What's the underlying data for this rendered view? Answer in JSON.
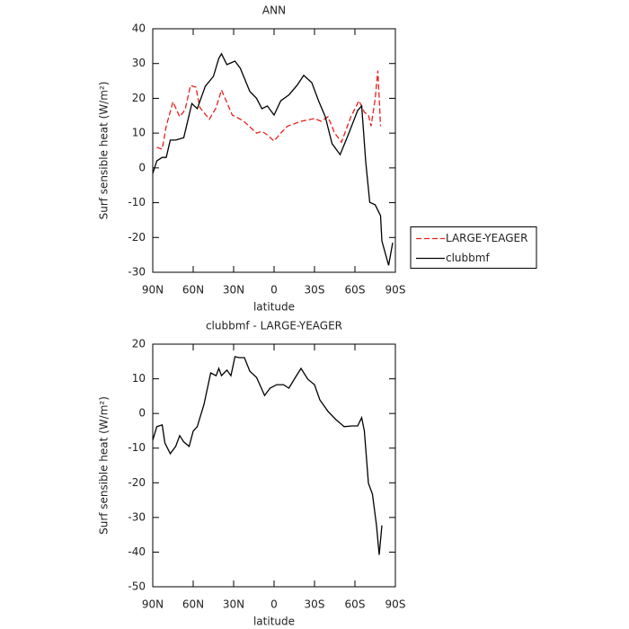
{
  "chart_data": [
    {
      "type": "line",
      "title": "ANN",
      "xlabel": "latitude",
      "ylabel": "Surf sensible heat (W/m²)",
      "xlim": [
        90,
        -90
      ],
      "ylim": [
        -30,
        40
      ],
      "xticks": [
        {
          "value": 90,
          "label": "90N"
        },
        {
          "value": 60,
          "label": "60N"
        },
        {
          "value": 30,
          "label": "30N"
        },
        0,
        {
          "value": -30,
          "label": "30S"
        },
        {
          "value": -60,
          "label": "60S"
        },
        {
          "value": -90,
          "label": "90S"
        }
      ],
      "yticks": [
        -30,
        -20,
        -10,
        0,
        10,
        20,
        30,
        40
      ],
      "legend": "right",
      "series": [
        {
          "name": "LARGE-YEAGER",
          "color": "#e8201c",
          "dash": true,
          "x": [
            87,
            83,
            80,
            75,
            70,
            66,
            62,
            58,
            55,
            48,
            43,
            39,
            31,
            23,
            13,
            9,
            5,
            0,
            -5,
            -10,
            -20,
            -30,
            -35,
            -40,
            -45,
            -50,
            -57,
            -63,
            -67,
            -70,
            -72,
            -75,
            -77,
            -79
          ],
          "values": [
            5.9,
            5.4,
            12,
            19,
            14.7,
            16.7,
            23.7,
            23.2,
            17.3,
            14,
            17.3,
            22.4,
            15.2,
            13.6,
            10,
            10.5,
            9.5,
            7.7,
            10,
            12,
            13.4,
            14.2,
            13.4,
            14.7,
            10,
            7.4,
            14.7,
            19.3,
            16,
            15.2,
            12,
            19.8,
            28,
            12
          ]
        },
        {
          "name": "clubbmf",
          "color": "#000000",
          "dash": false,
          "x": [
            90,
            87,
            83,
            80,
            77,
            73,
            67,
            61,
            57,
            51,
            45,
            41,
            39,
            35,
            29,
            25,
            18,
            13,
            9,
            5,
            0,
            -5,
            -11,
            -17,
            -22,
            -28,
            -33,
            -38,
            -43,
            -49,
            -55,
            -62,
            -65,
            -68,
            -71,
            -75,
            -79,
            -80,
            -85,
            -88
          ],
          "values": [
            -1.6,
            2,
            3,
            3,
            8,
            8,
            8.7,
            18.5,
            17,
            23.5,
            26.3,
            31.5,
            32.8,
            29.7,
            30.7,
            28.6,
            22,
            20,
            17,
            17.8,
            15.2,
            19.3,
            21,
            23.7,
            26.6,
            24.5,
            19.3,
            14.7,
            7,
            3.8,
            9.5,
            16.5,
            17.8,
            1.8,
            -9.9,
            -10.6,
            -13.7,
            -21,
            -28,
            -21.5
          ]
        }
      ]
    },
    {
      "type": "line",
      "title": "clubbmf - LARGE-YEAGER",
      "xlabel": "latitude",
      "ylabel": "Surf sensible heat (W/m²)",
      "xlim": [
        90,
        -90
      ],
      "ylim": [
        -50,
        20
      ],
      "xticks": [
        {
          "value": 90,
          "label": "90N"
        },
        {
          "value": 60,
          "label": "60N"
        },
        {
          "value": 30,
          "label": "30N"
        },
        0,
        {
          "value": -30,
          "label": "30S"
        },
        {
          "value": -60,
          "label": "60S"
        },
        {
          "value": -90,
          "label": "90S"
        }
      ],
      "yticks": [
        -50,
        -40,
        -30,
        -20,
        -10,
        0,
        10,
        20
      ],
      "color": "#000000",
      "x": [
        90,
        87,
        83,
        81,
        77,
        73,
        70,
        67,
        63,
        60,
        57,
        52,
        47,
        43,
        41,
        39,
        35,
        32,
        29,
        26,
        22,
        18,
        13,
        7,
        3,
        -2,
        -7,
        -11,
        -15,
        -20,
        -25,
        -30,
        -34,
        -40,
        -46,
        -52,
        -58,
        -62,
        -65,
        -67,
        -70,
        -73,
        -76,
        -78,
        -80
      ],
      "values": [
        -7.7,
        -3.8,
        -3.3,
        -8.5,
        -11.6,
        -9.5,
        -6.4,
        -8.2,
        -9.5,
        -5.1,
        -3.8,
        2.6,
        11.7,
        10.9,
        13,
        10.9,
        12.5,
        10.9,
        16.4,
        16.1,
        16.1,
        12.2,
        10.4,
        5.2,
        7.3,
        8.3,
        8.3,
        7.3,
        9.9,
        13,
        9.9,
        8.3,
        3.9,
        0.6,
        -1.8,
        -3.8,
        -3.6,
        -3.6,
        -1.2,
        -5.1,
        -20.1,
        -23.3,
        -32.3,
        -40.8,
        -32.3
      ]
    }
  ]
}
